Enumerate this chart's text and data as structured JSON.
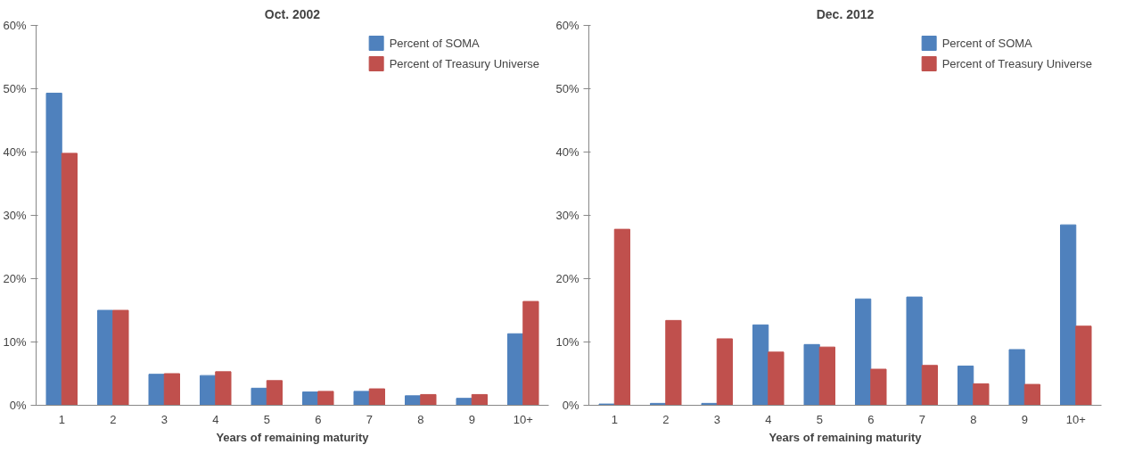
{
  "chart_data": [
    {
      "type": "bar",
      "title": "Oct. 2002",
      "xlabel": "Years of remaining maturity",
      "categories": [
        "1",
        "2",
        "3",
        "4",
        "5",
        "6",
        "7",
        "8",
        "9",
        "10+"
      ],
      "series": [
        {
          "name": "Percent of SOMA",
          "color": "#4f81bd",
          "values": [
            49.3,
            15,
            4.9,
            4.7,
            2.7,
            2.1,
            2.2,
            1.5,
            1.1,
            11.3
          ]
        },
        {
          "name": "Percent of Treasury Universe",
          "color": "#c0504d",
          "values": [
            39.8,
            15,
            5.0,
            5.3,
            3.9,
            2.2,
            2.6,
            1.7,
            1.7,
            16.4
          ]
        }
      ],
      "ylim": [
        0,
        60
      ],
      "yticks": [
        {
          "value": 0,
          "label": "0%"
        },
        {
          "value": 10,
          "label": "10%"
        },
        {
          "value": 20,
          "label": "20%"
        },
        {
          "value": 30,
          "label": "30%"
        },
        {
          "value": 40,
          "label": "40%"
        },
        {
          "value": 50,
          "label": "50%"
        },
        {
          "value": 60,
          "label": "60%"
        }
      ],
      "grid": false,
      "legend": "top right"
    },
    {
      "type": "bar",
      "title": "Dec. 2012",
      "xlabel": "Years of remaining maturity",
      "categories": [
        "1",
        "2",
        "3",
        "4",
        "5",
        "6",
        "7",
        "8",
        "9",
        "10+"
      ],
      "series": [
        {
          "name": "Percent of SOMA",
          "color": "#4f81bd",
          "values": [
            0.2,
            0.3,
            0.3,
            12.7,
            9.6,
            16.8,
            17.1,
            6.2,
            8.8,
            28.5
          ]
        },
        {
          "name": "Percent of Treasury Universe",
          "color": "#c0504d",
          "values": [
            27.8,
            13.4,
            10.5,
            8.4,
            9.2,
            5.7,
            6.3,
            3.4,
            3.3,
            12.5
          ]
        }
      ],
      "ylim": [
        0,
        60
      ],
      "yticks": [
        {
          "value": 0,
          "label": "0%"
        },
        {
          "value": 10,
          "label": "10%"
        },
        {
          "value": 20,
          "label": "20%"
        },
        {
          "value": 30,
          "label": "30%"
        },
        {
          "value": 40,
          "label": "40%"
        },
        {
          "value": 50,
          "label": "50%"
        },
        {
          "value": 60,
          "label": "60%"
        }
      ],
      "grid": false,
      "legend": "top right"
    }
  ]
}
